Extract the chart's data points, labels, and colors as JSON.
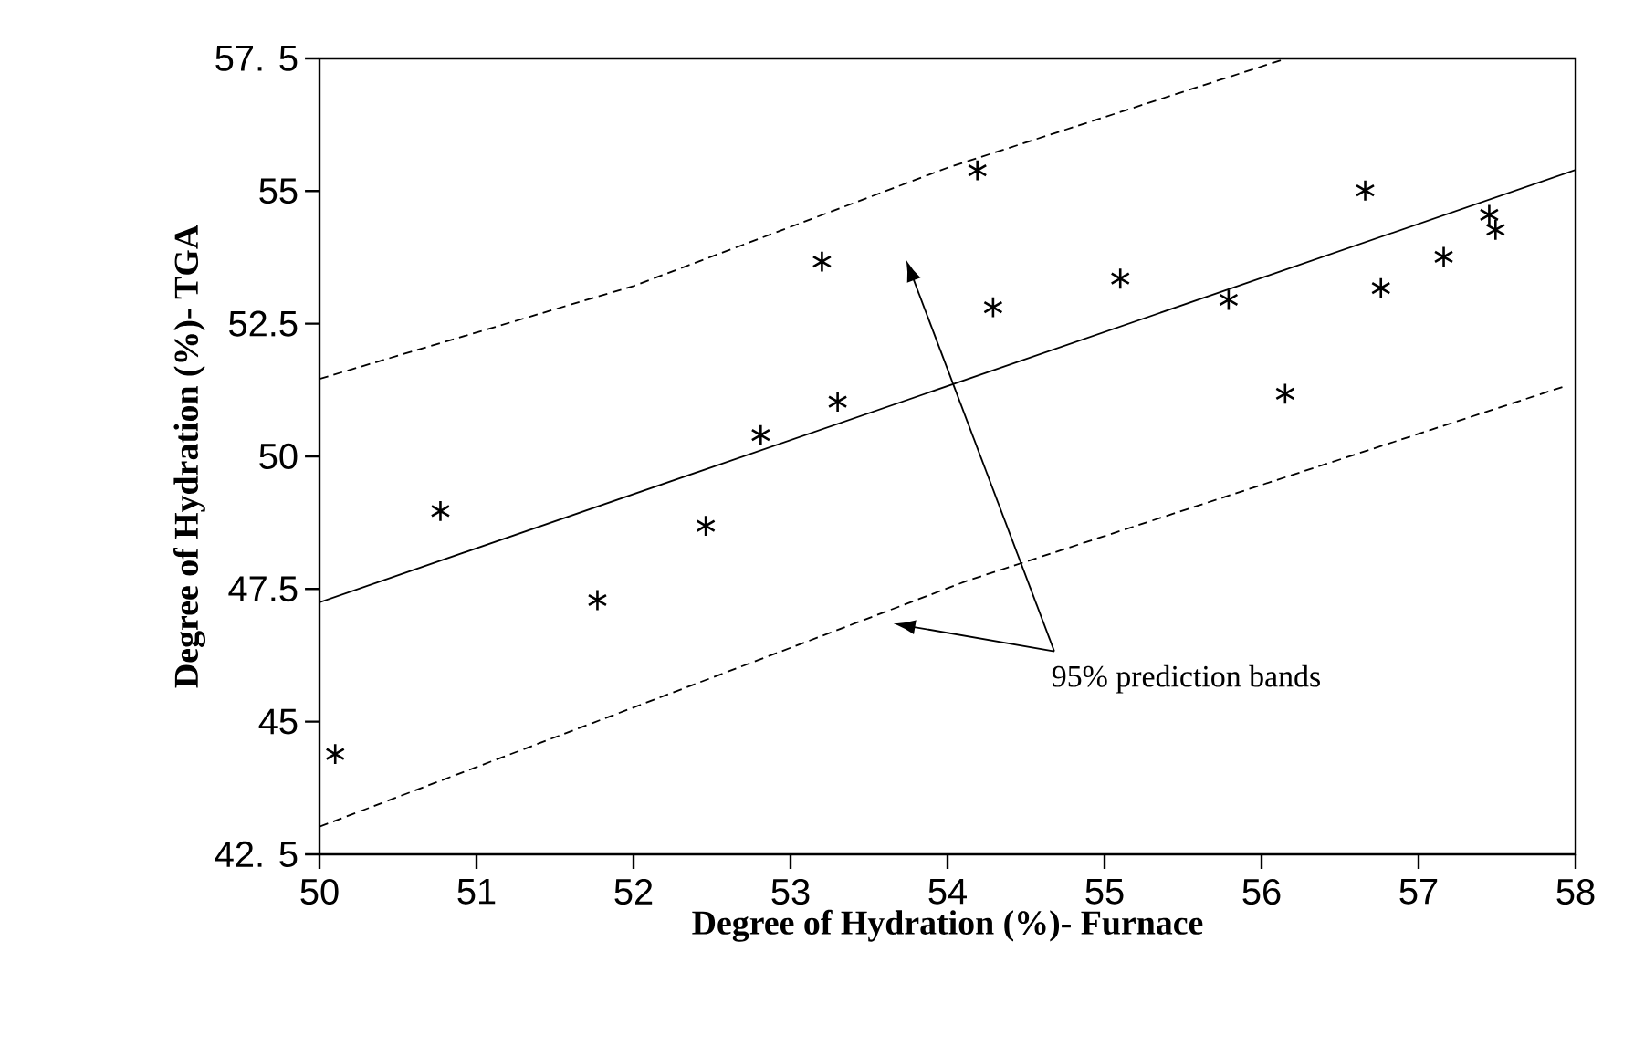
{
  "chart_data": {
    "type": "scatter",
    "xlabel": "Degree of Hydration (%)- Furnace",
    "ylabel": "Degree of Hydration (%)- TGA",
    "xlim": [
      50,
      58
    ],
    "ylim": [
      42.5,
      57.5
    ],
    "xticks": [
      50,
      51,
      52,
      53,
      54,
      55,
      56,
      57,
      58
    ],
    "yticks": [
      {
        "value": 42.5,
        "label": "42. 5"
      },
      45,
      47.5,
      50,
      52.5,
      55,
      {
        "value": 57.5,
        "label": "57. 5"
      }
    ],
    "grid": false,
    "annotations": [
      "95% prediction bands"
    ],
    "series": [
      {
        "marker": "cross",
        "color": "#000000",
        "x": [
          50.1,
          50.77,
          51.77,
          52.46,
          52.81,
          53.2,
          53.3,
          54.19,
          54.29,
          55.1,
          55.79,
          56.15,
          56.66,
          56.76,
          57.16,
          57.45,
          57.49
        ],
        "values": [
          44.39,
          48.97,
          47.29,
          48.69,
          50.4,
          53.67,
          51.03,
          55.39,
          52.81,
          53.35,
          52.95,
          51.18,
          55.01,
          53.17,
          53.76,
          54.55,
          54.27
        ]
      },
      {
        "type": "line",
        "line_style": "solid",
        "color": "#000000",
        "x": [
          50,
          58
        ],
        "values": [
          47.25,
          55.4
        ]
      },
      {
        "type": "line",
        "line_style": "dashed",
        "color": "#000000",
        "x": [
          50,
          52,
          54,
          56.16
        ],
        "values": [
          51.46,
          53.21,
          55.44,
          57.5
        ]
      },
      {
        "type": "line",
        "line_style": "dashed",
        "color": "#000000",
        "x": [
          50,
          54.12,
          57.93
        ],
        "values": [
          43.02,
          47.65,
          51.32
        ]
      }
    ]
  }
}
